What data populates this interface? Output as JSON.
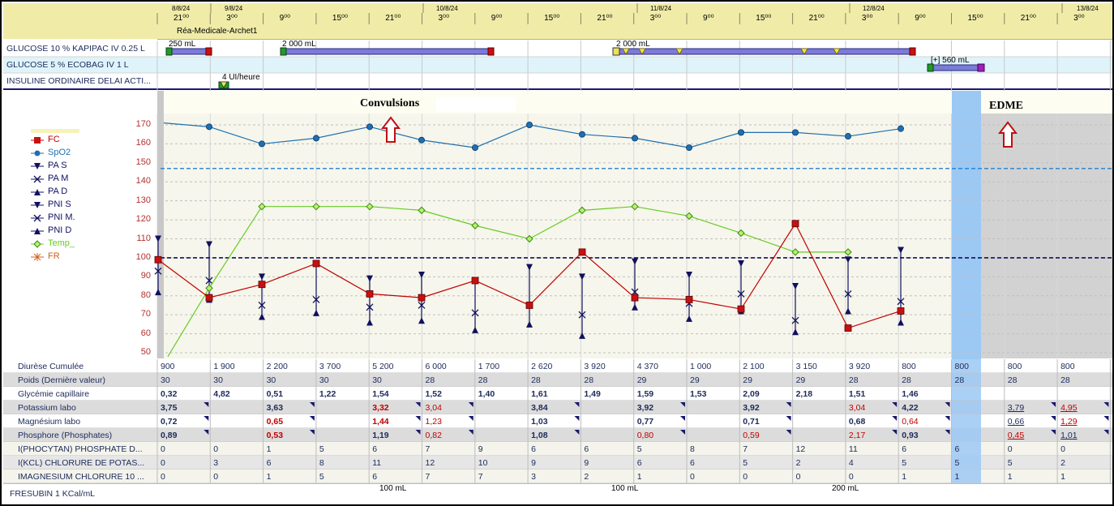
{
  "header": {
    "dates": [
      "8/8/24",
      "9/8/24",
      "10/8/24",
      "11/8/24",
      "12/8/24",
      "13/8/24"
    ],
    "hours": [
      "21⁰⁰",
      "3⁰⁰",
      "9⁰⁰",
      "15⁰⁰",
      "21⁰⁰",
      "3⁰⁰",
      "9⁰⁰",
      "15⁰⁰",
      "21⁰⁰",
      "3⁰⁰",
      "9⁰⁰",
      "15⁰⁰",
      "21⁰⁰",
      "3⁰⁰",
      "9⁰⁰",
      "15⁰⁰",
      "21⁰⁰",
      "3⁰⁰"
    ],
    "location": "Réa-Medicale-Archet1"
  },
  "perfusions": {
    "rows": [
      {
        "label": "GLUCOSE 10 % KAPIPAC IV 0.25 L",
        "annotations": [
          "250 mL",
          "2 000 mL",
          "2 000 mL"
        ]
      },
      {
        "label": "GLUCOSE 5 % ECOBAG IV 1 L",
        "annotations": [
          "[+] 560 mL"
        ]
      },
      {
        "label": "INSULINE ORDINAIRE DELAI ACTI...",
        "annotations": [
          "4 UI/heure"
        ]
      }
    ]
  },
  "events": {
    "convulsions": "Convulsions",
    "edme": "EDME"
  },
  "chart_data": {
    "type": "line",
    "ylim": [
      45,
      175
    ],
    "yticks": [
      "170",
      "160",
      "150",
      "140",
      "130",
      "120",
      "110",
      "100",
      "90",
      "80",
      "70",
      "60",
      "50"
    ],
    "legend": [
      "FC",
      "SpO2",
      "PA S",
      "PA M",
      "PA D",
      "PNI S",
      "PNI M.",
      "PNI D",
      "Temp_",
      "FR"
    ],
    "series": [
      {
        "name": "FC",
        "color": "#c00000",
        "values": [
          99,
          79,
          86,
          97,
          81,
          79,
          88,
          75,
          103,
          79,
          78,
          73,
          118,
          63,
          72
        ]
      },
      {
        "name": "SpO2",
        "color": "#1f6fb0",
        "values": [
          171,
          169,
          160,
          163,
          169,
          162,
          158,
          170,
          165,
          163,
          158,
          166,
          166,
          164,
          168
        ]
      },
      {
        "name": "Temp_",
        "color": "#66cc22",
        "values": [
          48,
          84,
          127,
          127,
          127,
          125,
          117,
          110,
          125,
          127,
          122,
          113,
          103,
          103
        ]
      },
      {
        "name": "PA S",
        "values": [
          110,
          107,
          90,
          97,
          89,
          91,
          88,
          95,
          90,
          98,
          91,
          97,
          85,
          99,
          104
        ]
      },
      {
        "name": "PA M",
        "values": [
          93,
          88,
          75,
          78,
          74,
          75,
          71,
          75,
          70,
          82,
          76,
          81,
          67,
          81,
          77
        ]
      },
      {
        "name": "PA D",
        "values": [
          82,
          78,
          69,
          71,
          66,
          67,
          62,
          65,
          59,
          74,
          68,
          72,
          61,
          72,
          66
        ]
      },
      {
        "name": "ref SpO2",
        "values": [
          147
        ]
      },
      {
        "name": "ref 100",
        "values": [
          100
        ]
      }
    ]
  },
  "table": {
    "rows": [
      {
        "label": "Diurèse Cumulée",
        "cells": [
          "900",
          "1 900",
          "2 200",
          "3 700",
          "5 200",
          "6 000",
          "1 700",
          "2 620",
          "3 920",
          "4 370",
          "1 000",
          "2 100",
          "3 150",
          "3 920",
          "800",
          "800",
          "800",
          "800"
        ]
      },
      {
        "label": "Poids (Dernière valeur)",
        "cells": [
          "30",
          "30",
          "30",
          "30",
          "30",
          "28",
          "28",
          "28",
          "28",
          "29",
          "29",
          "29",
          "29",
          "28",
          "28",
          "28",
          "28",
          "28"
        ]
      },
      {
        "label": "Glycémie capillaire",
        "cells": [
          "0,32",
          "4,82",
          "0,51",
          "1,22",
          "1,54",
          "1,52",
          "1,40",
          "1,61",
          "1,49",
          "1,59",
          "1,53",
          "2,09",
          "2,18",
          "1,51",
          "1,46",
          "",
          "",
          ""
        ]
      },
      {
        "label": "Potassium labo",
        "cells": [
          "3,75",
          "",
          "3,63",
          "",
          "3,32",
          "3,04",
          "",
          "3,84",
          "",
          "3,92",
          "",
          "3,92",
          "",
          "3,04",
          "4,22",
          "",
          "3,79",
          "4,95"
        ]
      },
      {
        "label": "Magnésium labo",
        "cells": [
          "0,72",
          "",
          "0,65",
          "",
          "1,44",
          "1,23",
          "",
          "1,03",
          "",
          "0,77",
          "",
          "0,71",
          "",
          "0,68",
          "0,64",
          "",
          "0,66",
          "1,29"
        ]
      },
      {
        "label": "Phosphore (Phosphates)",
        "cells": [
          "0,89",
          "",
          "0,53",
          "",
          "1,19",
          "0,82",
          "",
          "1,08",
          "",
          "0,80",
          "",
          "0,59",
          "",
          "2,17",
          "0,93",
          "",
          "0,45",
          "1,01"
        ]
      },
      {
        "label": "I(PHOCYTAN) PHOSPHATE D...",
        "cells": [
          "0",
          "0",
          "1",
          "5",
          "6",
          "7",
          "9",
          "6",
          "6",
          "5",
          "8",
          "7",
          "12",
          "11",
          "6",
          "6",
          "0",
          "0"
        ]
      },
      {
        "label": "I(KCL) CHLORURE DE POTAS...",
        "cells": [
          "0",
          "3",
          "6",
          "8",
          "11",
          "12",
          "10",
          "9",
          "9",
          "6",
          "6",
          "5",
          "2",
          "4",
          "5",
          "5",
          "5",
          "2"
        ]
      },
      {
        "label": "IMAGNESIUM CHLORURE 10 ...",
        "cells": [
          "0",
          "0",
          "1",
          "5",
          "6",
          "7",
          "7",
          "3",
          "2",
          "1",
          "0",
          "0",
          "0",
          "0",
          "1",
          "1",
          "1",
          "1"
        ]
      }
    ]
  },
  "nutrition": {
    "label": "FRESUBIN 1 KCal/mL",
    "annotations": [
      "100 mL",
      "100 mL",
      "200 mL"
    ]
  }
}
